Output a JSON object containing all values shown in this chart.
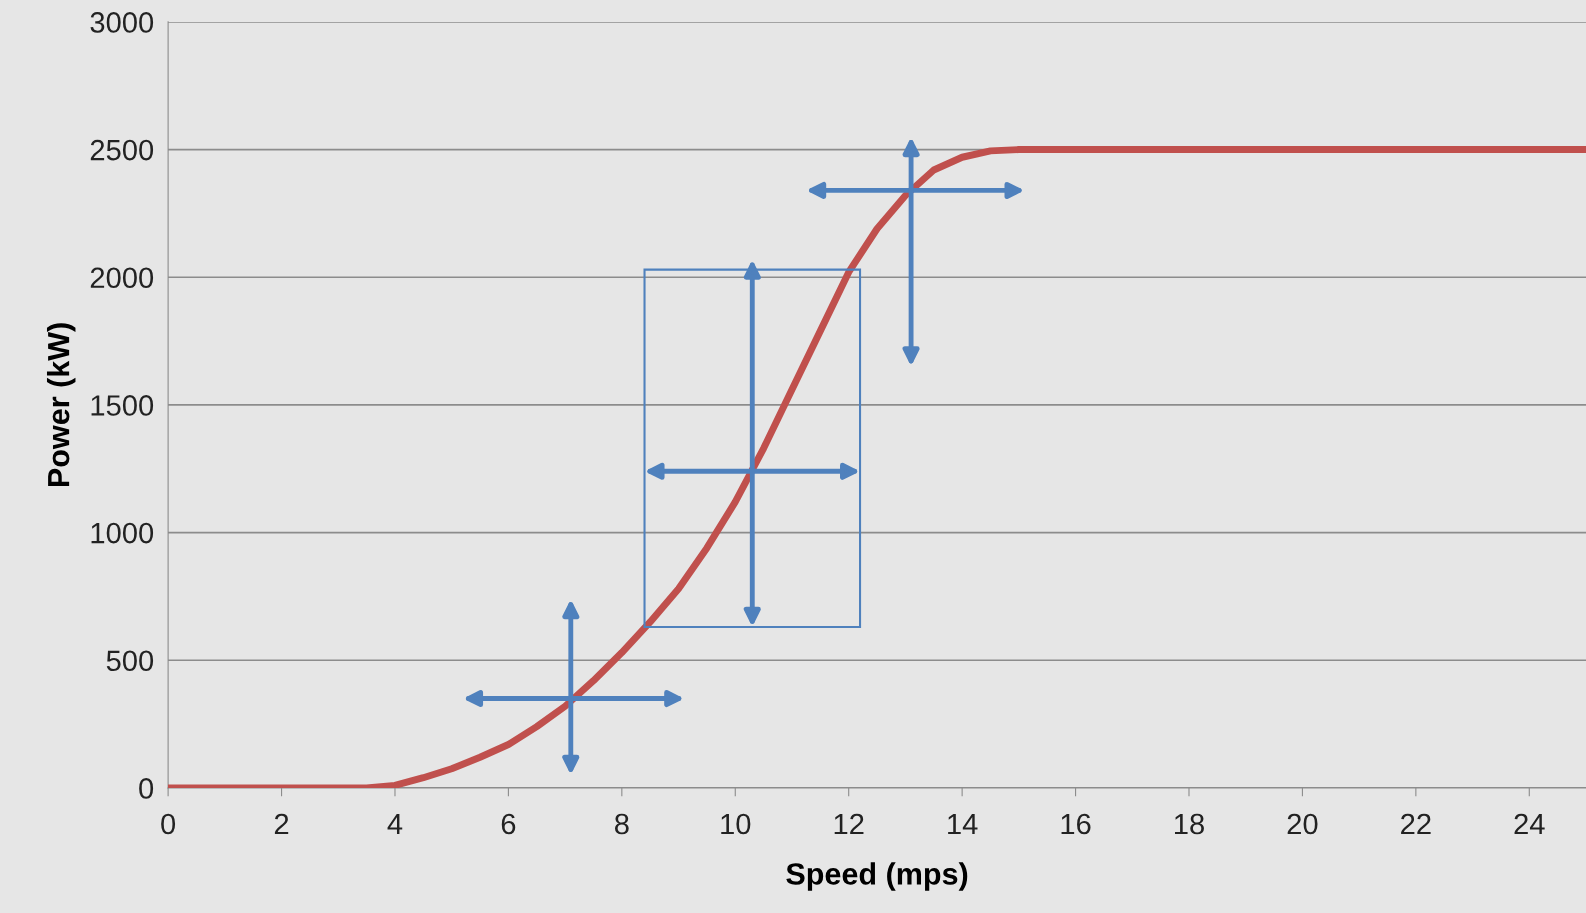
{
  "chart_data": {
    "type": "line",
    "xlabel": "Speed (mps)",
    "ylabel": "Power (kW)",
    "x": [
      0,
      1,
      2,
      3,
      3.5,
      4,
      4.5,
      5,
      5.5,
      6,
      6.5,
      7,
      7.5,
      8,
      8.5,
      9,
      9.5,
      10,
      10.5,
      11,
      11.5,
      12,
      12.5,
      13,
      13.5,
      14,
      14.5,
      15,
      15.5,
      16,
      18,
      20,
      22,
      24,
      25
    ],
    "series": [
      {
        "color": "#c0504d",
        "values": [
          0,
          0,
          0,
          0,
          0,
          10,
          40,
          75,
          120,
          170,
          240,
          320,
          420,
          530,
          650,
          780,
          940,
          1120,
          1330,
          1560,
          1790,
          2020,
          2190,
          2320,
          2420,
          2470,
          2495,
          2500,
          2500,
          2500,
          2500,
          2500,
          2500,
          2500,
          2500
        ]
      }
    ],
    "xlim": [
      0,
      25
    ],
    "xticks": [
      0,
      2,
      4,
      6,
      8,
      10,
      12,
      14,
      16,
      18,
      20,
      22,
      24
    ],
    "ylim": [
      0,
      3000
    ],
    "yticks": [
      0,
      500,
      1000,
      1500,
      2000,
      2500,
      3000
    ],
    "grid": "y",
    "marker": "none",
    "line_style": "solid"
  }
}
